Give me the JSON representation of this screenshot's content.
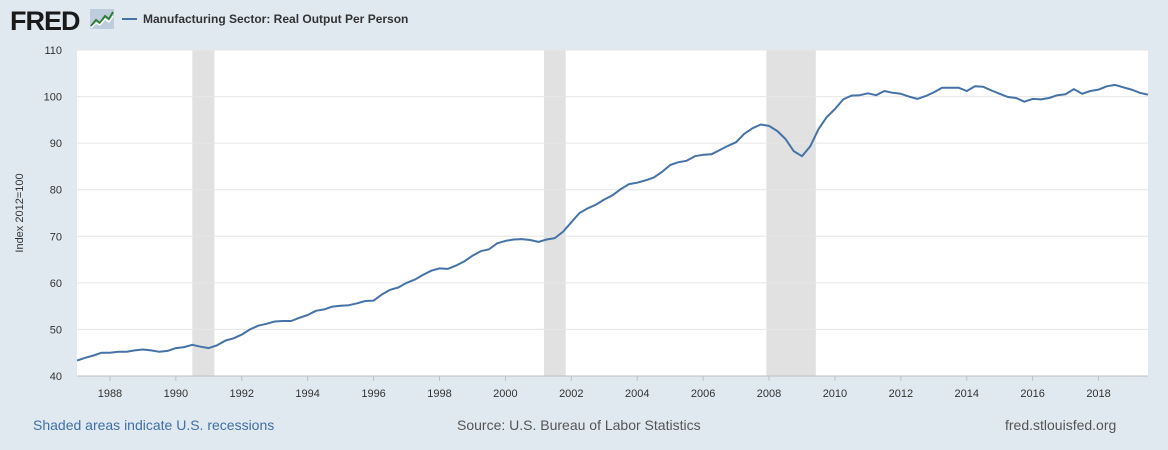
{
  "header": {
    "logo_text": "FRED",
    "series_title": "Manufacturing Sector: Real Output Per Person"
  },
  "footer": {
    "recession_note": "Shaded areas indicate U.S. recessions",
    "source": "Source: U.S. Bureau of Labor Statistics",
    "site": "fred.stlouisfed.org"
  },
  "colors": {
    "line": "#4572a7",
    "recession": "#e1e1e1",
    "background": "#e1e9f0",
    "plot": "#ffffff",
    "grid": "#e6e6e6"
  },
  "chart_data": {
    "type": "line",
    "title": "Manufacturing Sector: Real Output Per Person",
    "xlabel": "",
    "ylabel": "Index 2012=100",
    "xlim": [
      1987.0,
      2019.5
    ],
    "ylim": [
      40,
      110
    ],
    "y_ticks": [
      40,
      50,
      60,
      70,
      80,
      90,
      100,
      110
    ],
    "x_ticks": [
      1988,
      1990,
      1992,
      1994,
      1996,
      1998,
      2000,
      2002,
      2004,
      2006,
      2008,
      2010,
      2012,
      2014,
      2016,
      2018
    ],
    "grid": true,
    "recessions": [
      [
        1990.5,
        1991.17
      ],
      [
        2001.17,
        2001.83
      ],
      [
        2007.92,
        2009.42
      ]
    ],
    "series": [
      {
        "name": "Manufacturing Sector: Real Output Per Person",
        "x": [
          1987.0,
          1987.25,
          1987.5,
          1987.75,
          1988.0,
          1988.25,
          1988.5,
          1988.75,
          1989.0,
          1989.25,
          1989.5,
          1989.75,
          1990.0,
          1990.25,
          1990.5,
          1990.75,
          1991.0,
          1991.25,
          1991.5,
          1991.75,
          1992.0,
          1992.25,
          1992.5,
          1992.75,
          1993.0,
          1993.25,
          1993.5,
          1993.75,
          1994.0,
          1994.25,
          1994.5,
          1994.75,
          1995.0,
          1995.25,
          1995.5,
          1995.75,
          1996.0,
          1996.25,
          1996.5,
          1996.75,
          1997.0,
          1997.25,
          1997.5,
          1997.75,
          1998.0,
          1998.25,
          1998.5,
          1998.75,
          1999.0,
          1999.25,
          1999.5,
          1999.75,
          2000.0,
          2000.25,
          2000.5,
          2000.75,
          2001.0,
          2001.25,
          2001.5,
          2001.75,
          2002.0,
          2002.25,
          2002.5,
          2002.75,
          2003.0,
          2003.25,
          2003.5,
          2003.75,
          2004.0,
          2004.25,
          2004.5,
          2004.75,
          2005.0,
          2005.25,
          2005.5,
          2005.75,
          2006.0,
          2006.25,
          2006.5,
          2006.75,
          2007.0,
          2007.25,
          2007.5,
          2007.75,
          2008.0,
          2008.25,
          2008.5,
          2008.75,
          2009.0,
          2009.25,
          2009.5,
          2009.75,
          2010.0,
          2010.25,
          2010.5,
          2010.75,
          2011.0,
          2011.25,
          2011.5,
          2011.75,
          2012.0,
          2012.25,
          2012.5,
          2012.75,
          2013.0,
          2013.25,
          2013.5,
          2013.75,
          2014.0,
          2014.25,
          2014.5,
          2014.75,
          2015.0,
          2015.25,
          2015.5,
          2015.75,
          2016.0,
          2016.25,
          2016.5,
          2016.75,
          2017.0,
          2017.25,
          2017.5,
          2017.75,
          2018.0,
          2018.25,
          2018.5,
          2018.75,
          2019.0,
          2019.25,
          2019.5
        ],
        "values": [
          43.3,
          43.9,
          44.4,
          45.0,
          45.0,
          45.2,
          45.2,
          45.5,
          45.7,
          45.5,
          45.2,
          45.4,
          46.0,
          46.2,
          46.7,
          46.3,
          46.0,
          46.6,
          47.6,
          48.1,
          48.9,
          50.0,
          50.8,
          51.2,
          51.7,
          51.8,
          51.8,
          52.5,
          53.1,
          54.0,
          54.3,
          54.9,
          55.1,
          55.2,
          55.6,
          56.1,
          56.2,
          57.5,
          58.5,
          59.0,
          60.0,
          60.7,
          61.7,
          62.6,
          63.1,
          63.0,
          63.7,
          64.6,
          65.8,
          66.8,
          67.2,
          68.5,
          69.0,
          69.3,
          69.4,
          69.2,
          68.8,
          69.3,
          69.6,
          71.0,
          73.0,
          75.0,
          76.0,
          76.8,
          77.9,
          78.8,
          80.1,
          81.2,
          81.5,
          82.0,
          82.6,
          83.8,
          85.3,
          85.9,
          86.2,
          87.2,
          87.5,
          87.6,
          88.5,
          89.4,
          90.2,
          92.0,
          93.2,
          94.0,
          93.7,
          92.6,
          90.9,
          88.3,
          87.2,
          89.3,
          93.0,
          95.6,
          97.3,
          99.4,
          100.2,
          100.3,
          100.7,
          100.3,
          101.2,
          100.8,
          100.6,
          100.0,
          99.5,
          100.1,
          100.9,
          101.9,
          101.9,
          101.9,
          101.2,
          102.2,
          102.1,
          101.3,
          100.6,
          99.9,
          99.7,
          98.9,
          99.5,
          99.4,
          99.7,
          100.3,
          100.5,
          101.6,
          100.6,
          101.2,
          101.5,
          102.2,
          102.5,
          102.0,
          101.5,
          100.8,
          100.4
        ]
      }
    ]
  }
}
